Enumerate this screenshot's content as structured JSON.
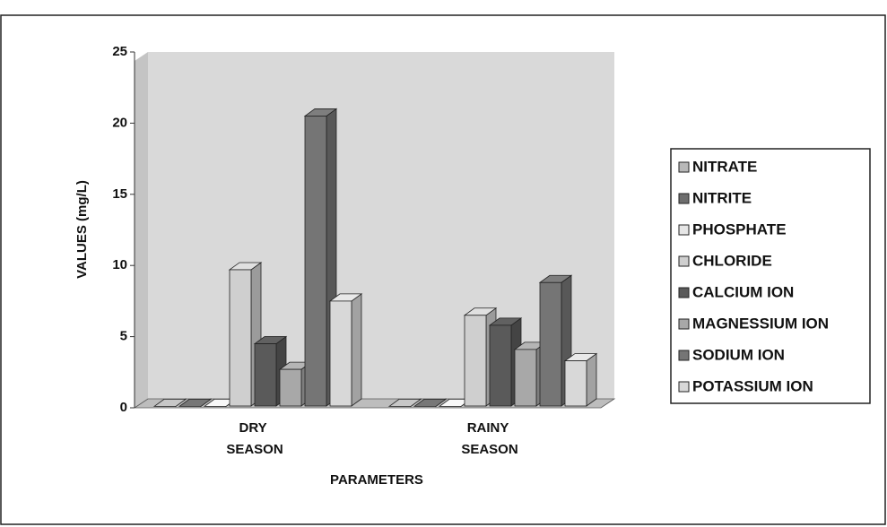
{
  "chart_data": {
    "type": "bar3d",
    "categories": [
      "DRY SEASON",
      "RAINY SEASON"
    ],
    "xlabel": "PARAMETERS",
    "ylabel": "VALUES (mg/L)",
    "ylim": [
      0,
      25
    ],
    "yticks": [
      0,
      5,
      10,
      15,
      20,
      25
    ],
    "series": [
      {
        "name": "NITRATE",
        "color": "#b8b8b8",
        "values": [
          0.1,
          0.1
        ]
      },
      {
        "name": "NITRITE",
        "color": "#6e6e6e",
        "values": [
          0.1,
          0.1
        ]
      },
      {
        "name": "PHOSPHATE",
        "color": "#e6e6e6",
        "values": [
          0.1,
          0.1
        ]
      },
      {
        "name": "CHLORIDE",
        "color": "#cfcfcf",
        "values": [
          9.7,
          6.5
        ]
      },
      {
        "name": "CALCIUM ION",
        "color": "#5a5a5a",
        "values": [
          4.5,
          5.8
        ]
      },
      {
        "name": "MAGNESSIUM ION",
        "color": "#a8a8a8",
        "values": [
          2.7,
          4.1
        ]
      },
      {
        "name": "SODIUM ION",
        "color": "#757575",
        "values": [
          20.5,
          8.8
        ]
      },
      {
        "name": "POTASSIUM ION",
        "color": "#d8d8d8",
        "values": [
          7.5,
          3.3
        ]
      }
    ]
  }
}
